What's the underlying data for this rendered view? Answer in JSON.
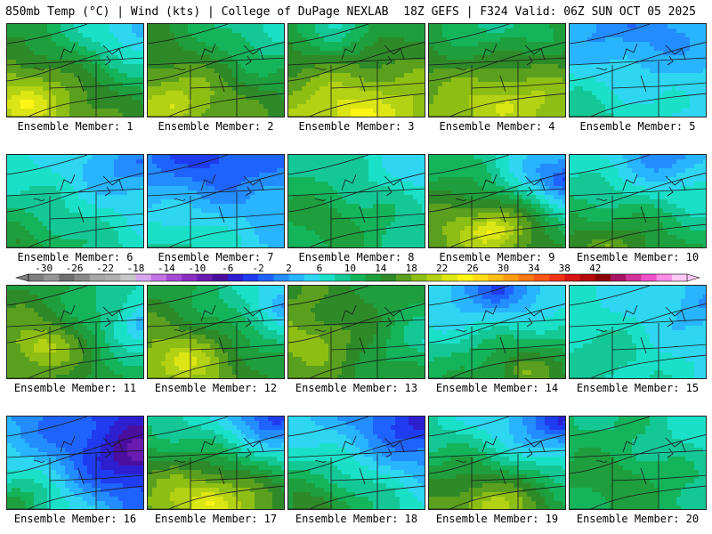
{
  "header": {
    "left_title": "850mb Temp (°C) | Wind (kts) | College of DuPage NEXLAB",
    "right_title": "18Z GEFS | F324 Valid: 06Z SUN OCT 05 2025"
  },
  "legend": {
    "tick_labels": [
      "-30",
      "-26",
      "-22",
      "-18",
      "-14",
      "-10",
      "-6",
      "-2",
      "2",
      "6",
      "10",
      "14",
      "18",
      "22",
      "26",
      "30",
      "34",
      "38",
      "42"
    ],
    "units": "°C",
    "colors": [
      "#7f7f7f",
      "#969696",
      "#6e6e6e",
      "#8a8a8a",
      "#a6a6a6",
      "#b0b0b0",
      "#c8c8c8",
      "#d8a6f0",
      "#c473e8",
      "#a64bd6",
      "#8a2fc4",
      "#6a1bb0",
      "#4b0fa0",
      "#2d1fd0",
      "#1f3cf0",
      "#1f63ff",
      "#238cff",
      "#28b4ff",
      "#2ed6f2",
      "#1ae0c8",
      "#14c896",
      "#14b45a",
      "#1e9e3c",
      "#2e8a28",
      "#5aa01e",
      "#8cbe14",
      "#b4d214",
      "#dce614",
      "#fff514",
      "#ffdc14",
      "#ffbe14",
      "#ff9c14",
      "#ff7814",
      "#ff5514",
      "#f03214",
      "#d81414",
      "#b40a0a",
      "#8c0505",
      "#aa1464",
      "#d2329a",
      "#f050c8",
      "#ff8ce6",
      "#ffc8f5"
    ],
    "color_min": -32,
    "color_step": 2
  },
  "members": [
    {
      "label": "Ensemble Member: 1",
      "scene": {
        "warm_x": 0.15,
        "warm_y": 0.85,
        "warm_t": 24,
        "cold_x": 0.95,
        "cold_y": 0.05,
        "cold_t": 2
      }
    },
    {
      "label": "Ensemble Member: 2",
      "scene": {
        "warm_x": 0.2,
        "warm_y": 0.85,
        "warm_t": 22,
        "cold_x": 0.9,
        "cold_y": 0.05,
        "cold_t": 6
      }
    },
    {
      "label": "Ensemble Member: 3",
      "scene": {
        "warm_x": 0.5,
        "warm_y": 0.95,
        "warm_t": 25,
        "cold_x": 0.35,
        "cold_y": 0.0,
        "cold_t": 8
      }
    },
    {
      "label": "Ensemble Member: 4",
      "scene": {
        "warm_x": 0.55,
        "warm_y": 0.85,
        "warm_t": 23,
        "cold_x": 0.5,
        "cold_y": 0.0,
        "cold_t": 8
      }
    },
    {
      "label": "Ensemble Member: 5",
      "scene": {
        "warm_x": 0.05,
        "warm_y": 1.0,
        "warm_t": 10,
        "cold_x": 0.45,
        "cold_y": 0.05,
        "cold_t": 0
      }
    },
    {
      "label": "Ensemble Member: 6",
      "scene": {
        "warm_x": 0.1,
        "warm_y": 0.95,
        "warm_t": 14,
        "cold_x": 0.95,
        "cold_y": 0.1,
        "cold_t": 0
      }
    },
    {
      "label": "Ensemble Member: 7",
      "scene": {
        "warm_x": 0.2,
        "warm_y": 1.0,
        "warm_t": 10,
        "cold_x": 0.45,
        "cold_y": 0.0,
        "cold_t": -4
      }
    },
    {
      "label": "Ensemble Member: 8",
      "scene": {
        "warm_x": 0.3,
        "warm_y": 0.7,
        "warm_t": 14,
        "cold_x": 0.95,
        "cold_y": 0.15,
        "cold_t": 4
      }
    },
    {
      "label": "Ensemble Member: 9",
      "scene": {
        "warm_x": 0.45,
        "warm_y": 0.8,
        "warm_t": 25,
        "cold_x": 1.0,
        "cold_y": 0.25,
        "cold_t": -4
      }
    },
    {
      "label": "Ensemble Member: 10",
      "scene": {
        "warm_x": 0.3,
        "warm_y": 1.0,
        "warm_t": 18,
        "cold_x": 0.7,
        "cold_y": 0.0,
        "cold_t": 0
      }
    },
    {
      "label": "Ensemble Member: 11",
      "scene": {
        "warm_x": 0.25,
        "warm_y": 0.65,
        "warm_t": 22,
        "cold_x": 1.0,
        "cold_y": 0.4,
        "cold_t": 2
      }
    },
    {
      "label": "Ensemble Member: 12",
      "scene": {
        "warm_x": 0.25,
        "warm_y": 0.8,
        "warm_t": 23,
        "cold_x": 1.0,
        "cold_y": 0.2,
        "cold_t": 2
      }
    },
    {
      "label": "Ensemble Member: 13",
      "scene": {
        "warm_x": 0.15,
        "warm_y": 0.6,
        "warm_t": 20,
        "cold_x": 1.0,
        "cold_y": 0.6,
        "cold_t": 8
      }
    },
    {
      "label": "Ensemble Member: 14",
      "scene": {
        "warm_x": 0.7,
        "warm_y": 0.9,
        "warm_t": 18,
        "cold_x": 0.5,
        "cold_y": 0.05,
        "cold_t": -2
      }
    },
    {
      "label": "Ensemble Member: 15",
      "scene": {
        "warm_x": 0.2,
        "warm_y": 0.8,
        "warm_t": 10,
        "cold_x": 1.0,
        "cold_y": 0.2,
        "cold_t": 2
      }
    },
    {
      "label": "Ensemble Member: 16",
      "scene": {
        "warm_x": 0.05,
        "warm_y": 0.95,
        "warm_t": 14,
        "cold_x": 0.95,
        "cold_y": 0.4,
        "cold_t": -10
      }
    },
    {
      "label": "Ensemble Member: 17",
      "scene": {
        "warm_x": 0.45,
        "warm_y": 0.9,
        "warm_t": 25,
        "cold_x": 0.95,
        "cold_y": 0.0,
        "cold_t": -4
      }
    },
    {
      "label": "Ensemble Member: 18",
      "scene": {
        "warm_x": 0.2,
        "warm_y": 0.95,
        "warm_t": 16,
        "cold_x": 1.0,
        "cold_y": 0.05,
        "cold_t": -6
      }
    },
    {
      "label": "Ensemble Member: 19",
      "scene": {
        "warm_x": 0.45,
        "warm_y": 0.95,
        "warm_t": 22,
        "cold_x": 0.95,
        "cold_y": 0.05,
        "cold_t": -4
      }
    },
    {
      "label": "Ensemble Member: 20",
      "scene": {
        "warm_x": 0.35,
        "warm_y": 0.7,
        "warm_t": 14,
        "cold_x": 1.0,
        "cold_y": 0.2,
        "cold_t": 6
      }
    }
  ]
}
